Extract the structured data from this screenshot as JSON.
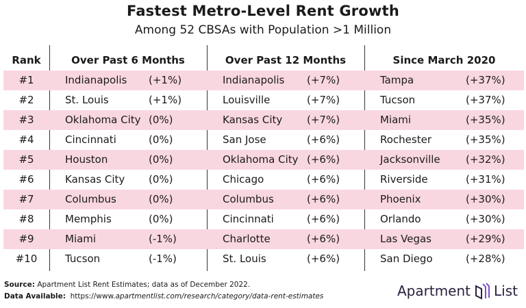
{
  "title": "Fastest Metro-Level Rent Growth",
  "subtitle": "Among 52 CBSAs with Population >1 Million",
  "chart_data": {
    "type": "table",
    "columns": [
      "Rank",
      "Over Past 6 Months",
      "Over Past 12 Months",
      "Since March 2020"
    ],
    "rows": [
      {
        "rank": "#1",
        "m6": {
          "city": "Indianapolis",
          "pct": "(+1%)"
        },
        "m12": {
          "city": "Indianapolis",
          "pct": "(+7%)"
        },
        "since": {
          "city": "Tampa",
          "pct": "(+37%)"
        }
      },
      {
        "rank": "#2",
        "m6": {
          "city": "St. Louis",
          "pct": "(+1%)"
        },
        "m12": {
          "city": "Louisville",
          "pct": "(+7%)"
        },
        "since": {
          "city": "Tucson",
          "pct": "(+37%)"
        }
      },
      {
        "rank": "#3",
        "m6": {
          "city": "Oklahoma City",
          "pct": "(0%)"
        },
        "m12": {
          "city": "Kansas City",
          "pct": "(+7%)"
        },
        "since": {
          "city": "Miami",
          "pct": "(+35%)"
        }
      },
      {
        "rank": "#4",
        "m6": {
          "city": "Cincinnati",
          "pct": "(0%)"
        },
        "m12": {
          "city": "San Jose",
          "pct": "(+6%)"
        },
        "since": {
          "city": "Rochester",
          "pct": "(+35%)"
        }
      },
      {
        "rank": "#5",
        "m6": {
          "city": "Houston",
          "pct": "(0%)"
        },
        "m12": {
          "city": "Oklahoma City",
          "pct": "(+6%)"
        },
        "since": {
          "city": "Jacksonville",
          "pct": "(+32%)"
        }
      },
      {
        "rank": "#6",
        "m6": {
          "city": "Kansas City",
          "pct": "(0%)"
        },
        "m12": {
          "city": "Chicago",
          "pct": "(+6%)"
        },
        "since": {
          "city": "Riverside",
          "pct": "(+31%)"
        }
      },
      {
        "rank": "#7",
        "m6": {
          "city": "Columbus",
          "pct": "(0%)"
        },
        "m12": {
          "city": "Columbus",
          "pct": "(+6%)"
        },
        "since": {
          "city": "Phoenix",
          "pct": "(+30%)"
        }
      },
      {
        "rank": "#8",
        "m6": {
          "city": "Memphis",
          "pct": "(0%)"
        },
        "m12": {
          "city": "Cincinnati",
          "pct": "(+6%)"
        },
        "since": {
          "city": "Orlando",
          "pct": "(+30%)"
        }
      },
      {
        "rank": "#9",
        "m6": {
          "city": "Miami",
          "pct": "(-1%)"
        },
        "m12": {
          "city": "Charlotte",
          "pct": "(+6%)"
        },
        "since": {
          "city": "Las Vegas",
          "pct": "(+29%)"
        }
      },
      {
        "rank": "#10",
        "m6": {
          "city": "Tucson",
          "pct": "(-1%)"
        },
        "m12": {
          "city": "St. Louis",
          "pct": "(+6%)"
        },
        "since": {
          "city": "San Diego",
          "pct": "(+28%)"
        }
      }
    ],
    "stripe_color": "#f9d7e0"
  },
  "footer": {
    "source_label": "Source:",
    "source_text": "Apartment List Rent Estimates; data as of December 2022.",
    "data_label": "Data Available:",
    "data_url_prefix": "https://www.",
    "data_url_rest": "apartmentlist.com/research/category/data-rent-estimates"
  },
  "logo": {
    "left": "Apartment",
    "right": "List",
    "icon": "apartment-list-logo-icon"
  }
}
